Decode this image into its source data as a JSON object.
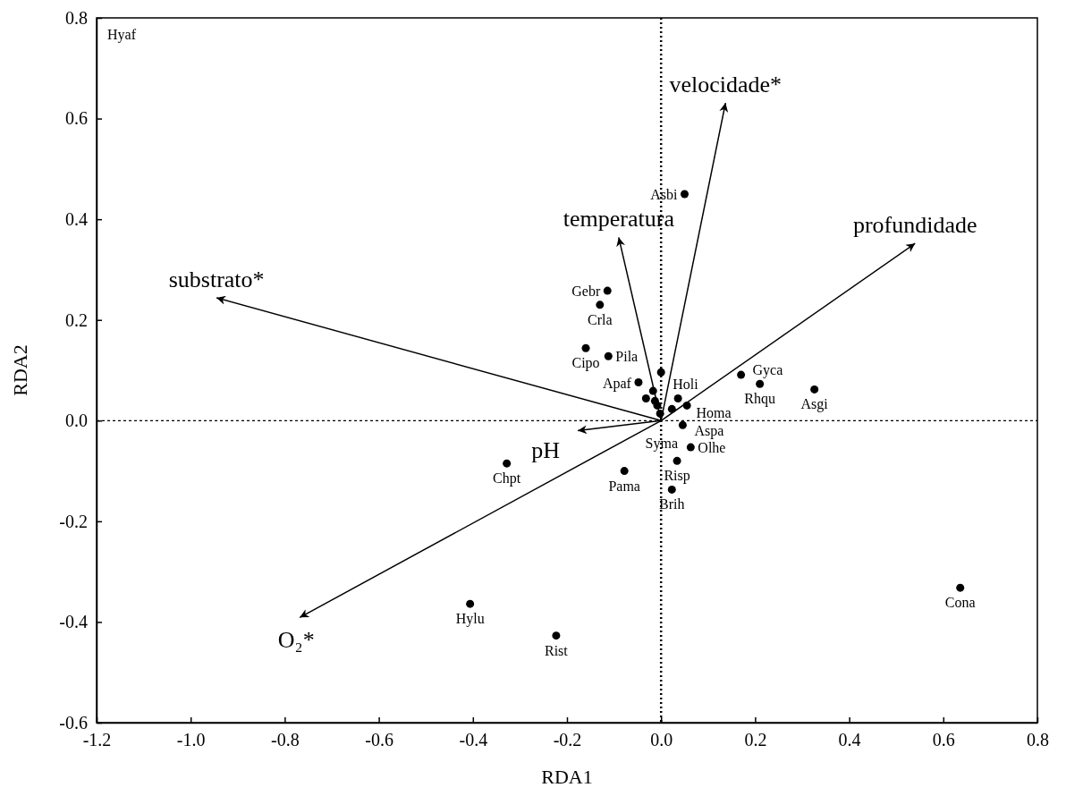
{
  "chart_data": {
    "type": "scatter",
    "xlabel": "RDA1",
    "ylabel": "RDA2",
    "xlim": [
      -1.2,
      0.8
    ],
    "xticks": [
      -1.2,
      {
        "value": -1,
        "label": "-1.0"
      },
      -0.8,
      -0.6,
      -0.4,
      -0.2,
      {
        "value": 0,
        "label": "0.0"
      },
      0.2,
      0.4,
      0.6,
      0.8
    ],
    "ylim": [
      -0.6,
      0.8
    ],
    "yticks": [
      -0.6,
      -0.4,
      -0.2,
      {
        "value": 0,
        "label": "0.0"
      },
      0.2,
      0.4,
      0.6,
      0.8
    ],
    "grid": false,
    "marker": "circle",
    "ref_lines": [
      {
        "axis": "x",
        "value": 0,
        "line_style": "dotted",
        "color": "#000000"
      },
      {
        "axis": "y",
        "value": 0,
        "line_style": "dashed",
        "color": "#000000"
      }
    ],
    "series": [
      {
        "color": "#000000",
        "x": [
          0.05,
          -0.114,
          -0.13,
          -0.16,
          -0.112,
          0.0,
          -0.048,
          -0.017,
          -0.032,
          -0.013,
          -0.008,
          -0.002,
          0.036,
          0.055,
          0.023,
          0.046,
          0.063,
          0.034,
          0.023,
          -0.078,
          -0.328,
          0.17,
          0.21,
          0.326,
          0.636,
          -0.406,
          -0.223
        ],
        "values": [
          0.45,
          0.258,
          0.23,
          0.144,
          0.128,
          0.096,
          0.076,
          0.059,
          0.044,
          0.039,
          0.03,
          0.014,
          0.044,
          0.03,
          0.023,
          -0.009,
          -0.053,
          -0.08,
          -0.137,
          -0.1,
          -0.085,
          0.091,
          0.073,
          0.062,
          -0.332,
          -0.364,
          -0.427
        ]
      },
      {
        "type": "line",
        "name": "velocidade*",
        "marker": "none",
        "color": "#000000",
        "x": [
          0,
          0.137
        ],
        "values": [
          0,
          0.631
        ]
      },
      {
        "type": "line",
        "name": "temperatura",
        "marker": "none",
        "color": "#000000",
        "x": [
          0,
          -0.09
        ],
        "values": [
          0,
          0.364
        ]
      },
      {
        "type": "line",
        "name": "profundidade",
        "marker": "none",
        "color": "#000000",
        "x": [
          0,
          0.54
        ],
        "values": [
          0,
          0.352
        ]
      },
      {
        "type": "line",
        "name": "substrato*",
        "marker": "none",
        "color": "#000000",
        "x": [
          0,
          -0.945
        ],
        "values": [
          0,
          0.244
        ]
      },
      {
        "type": "line",
        "name": "pH",
        "marker": "none",
        "color": "#000000",
        "x": [
          0,
          -0.177
        ],
        "values": [
          0,
          -0.02
        ]
      },
      {
        "type": "line",
        "name": "O₂*",
        "marker": "none",
        "color": "#000000",
        "x": [
          0,
          -0.768
        ],
        "values": [
          0,
          -0.391
        ]
      }
    ],
    "annotations": [
      {
        "text": "Asbi",
        "x": 0.05,
        "y": 0.45
      },
      {
        "text": "Gebr",
        "x": -0.114,
        "y": 0.258
      },
      {
        "text": "Crla",
        "x": -0.13,
        "y": 0.23
      },
      {
        "text": "Cipo",
        "x": -0.16,
        "y": 0.144
      },
      {
        "text": "Pila",
        "x": -0.112,
        "y": 0.128
      },
      {
        "text": "Holi",
        "x": 0.0,
        "y": 0.096
      },
      {
        "text": "Apaf",
        "x": -0.048,
        "y": 0.076
      },
      {
        "text": "Homa",
        "x": 0.036,
        "y": 0.044
      },
      {
        "text": "Aspa",
        "x": 0.055,
        "y": 0.03
      },
      {
        "text": "Syma",
        "x": 0.046,
        "y": -0.009
      },
      {
        "text": "Olhe",
        "x": 0.063,
        "y": -0.053
      },
      {
        "text": "Risp",
        "x": 0.034,
        "y": -0.08
      },
      {
        "text": "Brih",
        "x": 0.023,
        "y": -0.137
      },
      {
        "text": "Pama",
        "x": -0.078,
        "y": -0.1
      },
      {
        "text": "Chpt",
        "x": -0.328,
        "y": -0.085
      },
      {
        "text": "Gyca",
        "x": 0.17,
        "y": 0.091
      },
      {
        "text": "Rhqu",
        "x": 0.21,
        "y": 0.073
      },
      {
        "text": "Asgi",
        "x": 0.326,
        "y": 0.062
      },
      {
        "text": "Cona",
        "x": 0.636,
        "y": -0.332
      },
      {
        "text": "Hylu",
        "x": -0.406,
        "y": -0.364
      },
      {
        "text": "Rist",
        "x": -0.223,
        "y": -0.427
      },
      "Hyaf"
    ]
  }
}
